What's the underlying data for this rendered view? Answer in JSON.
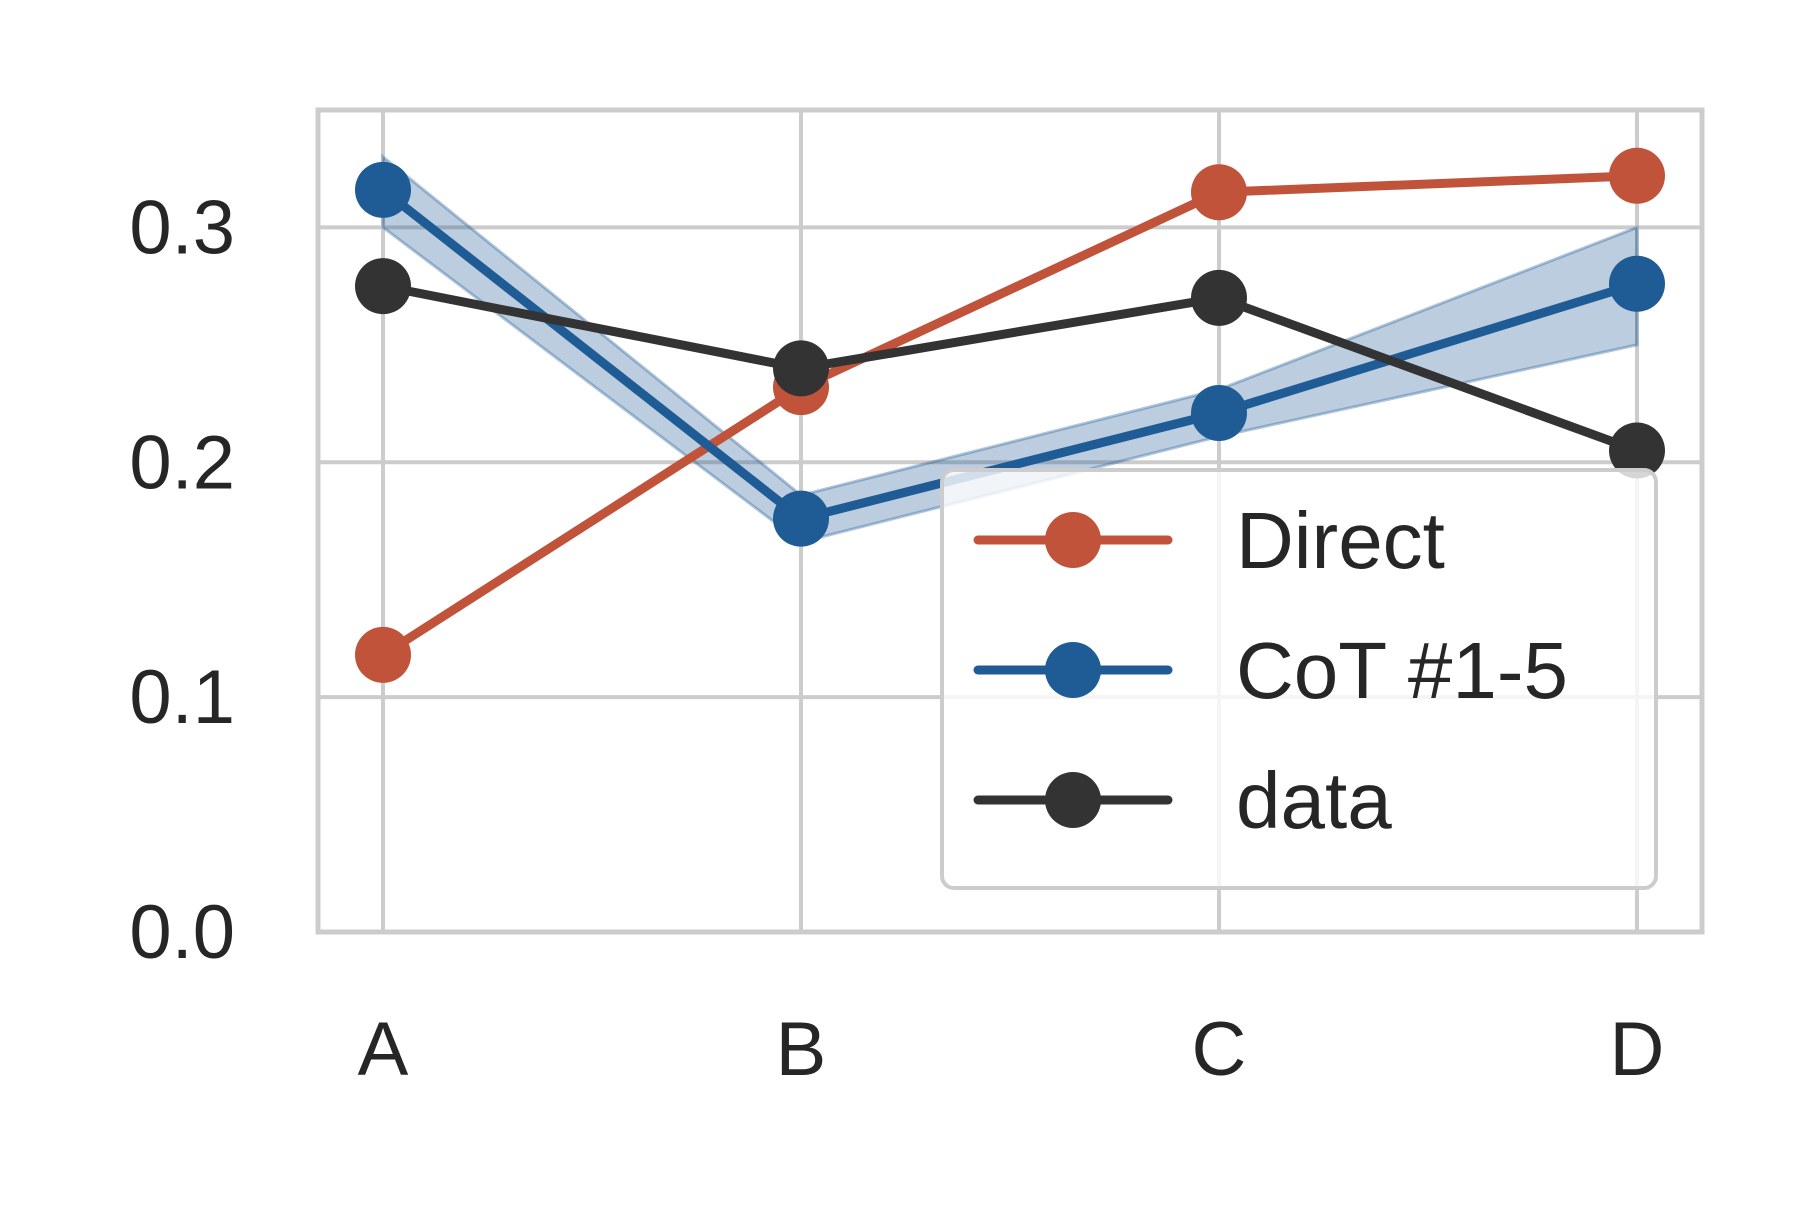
{
  "chart_data": {
    "type": "line",
    "categories": [
      "A",
      "B",
      "C",
      "D"
    ],
    "yticks": [
      "0.0",
      "0.1",
      "0.2",
      "0.3"
    ],
    "ylim": [
      0.0,
      0.35
    ],
    "grid": true,
    "legend_position": "lower-right",
    "series": [
      {
        "name": "Direct",
        "color": "#c0533a",
        "values": [
          0.118,
          0.232,
          0.315,
          0.322
        ]
      },
      {
        "name": "CoT #1-5",
        "color": "#1f5b94",
        "band_color": "#1f5b94",
        "values": [
          0.316,
          0.176,
          0.221,
          0.276
        ],
        "band_low": [
          0.3,
          0.166,
          0.211,
          0.25
        ],
        "band_high": [
          0.33,
          0.186,
          0.231,
          0.3
        ]
      },
      {
        "name": "data",
        "color": "#333333",
        "values": [
          0.275,
          0.24,
          0.27,
          0.205
        ]
      }
    ]
  }
}
